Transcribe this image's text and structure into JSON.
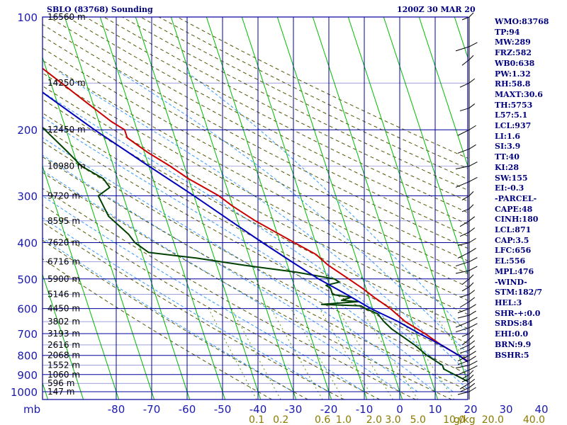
{
  "header": {
    "title": "SBLO (83768) Sounding",
    "datetime": "1200Z 30 MAR 20"
  },
  "indices": [
    "WMO:83768",
    "TP:94",
    "MW:289",
    "FRZ:582",
    "WB0:638",
    "PW:1.32",
    "RH:58.8",
    "MAXT:30.6",
    "TH:5753",
    "L57:5.1",
    "LCL:937",
    "LI:1.6",
    "SI:3.9",
    "TT:40",
    "KI:28",
    "SW:155",
    "EI:-0.3",
    "-PARCEL-",
    "CAPE:48",
    "CINH:180",
    "LCL:871",
    "CAP:3.5",
    "LFC:656",
    "EL:556",
    "MPL:476",
    "-WIND-",
    "STM:182/7",
    "HEL:3",
    "SHR-+:0.0",
    "SRDS:84",
    "EHI:0.0",
    "BRN:9.9",
    "BSHR:5"
  ],
  "colors": {
    "temperature": "#cc0000",
    "dewpoint": "#004000",
    "parcel": "#0000bb",
    "isobar": "#000099",
    "isotherm": "#00bb00",
    "dry_adiabat": "#555500",
    "moist_adiabat": "#3399ff",
    "label": "#1a1ab3"
  },
  "chart_data": {
    "type": "skew-t log-p sounding",
    "units_label": "mb",
    "mixing_ratio_unit": "g/kg",
    "pressure_levels": [
      100,
      200,
      300,
      400,
      500,
      600,
      700,
      800,
      900,
      1000
    ],
    "pressure_tick_labels": [
      "100",
      "200",
      "300",
      "400",
      "500",
      "600",
      "700",
      "800",
      "900",
      "1000"
    ],
    "pressure_range": [
      100,
      1050
    ],
    "temperature_ticks": [
      -80,
      -70,
      -60,
      -50,
      -40,
      -30,
      -20,
      -10,
      0,
      10,
      20,
      30,
      40
    ],
    "temperature_tick_labels": [
      "-80",
      "-70",
      "-60",
      "-50",
      "-40",
      "-30",
      "-20",
      "-10",
      "0",
      "10",
      "20",
      "30",
      "40"
    ],
    "heights": [
      {
        "p": 100,
        "label": "16560 m"
      },
      {
        "p": 150,
        "label": "14250 m"
      },
      {
        "p": 200,
        "label": "12450 m"
      },
      {
        "p": 250,
        "label": "10980 m"
      },
      {
        "p": 300,
        "label": "9720 m"
      },
      {
        "p": 350,
        "label": "8595 m"
      },
      {
        "p": 400,
        "label": "7620 m"
      },
      {
        "p": 450,
        "label": "6716 m"
      },
      {
        "p": 500,
        "label": "5900 m"
      },
      {
        "p": 550,
        "label": "5146 m"
      },
      {
        "p": 600,
        "label": "4450 m"
      },
      {
        "p": 650,
        "label": "3802 m"
      },
      {
        "p": 700,
        "label": "3193 m"
      },
      {
        "p": 750,
        "label": "2616 m"
      },
      {
        "p": 800,
        "label": "2068 m"
      },
      {
        "p": 850,
        "label": "1552 m"
      },
      {
        "p": 900,
        "label": "1060 m"
      },
      {
        "p": 950,
        "label": "596 m"
      },
      {
        "p": 1000,
        "label": "147 m"
      }
    ],
    "mixing_ratio_labels": [
      "0.1",
      "0.2",
      "0.6",
      "1.0",
      "2.0",
      "3.0",
      "5.0",
      "10.0",
      "20.0",
      "40.0"
    ],
    "mixing_ratio_values": [
      0.1,
      0.2,
      0.6,
      1.0,
      2.0,
      3.0,
      5.0,
      10.0,
      20.0,
      40.0
    ],
    "series": [
      {
        "key": "temperature",
        "points": [
          [
            100,
            -80.0
          ],
          [
            120,
            -77.0
          ],
          [
            150,
            -67.0
          ],
          [
            170,
            -61.5
          ],
          [
            190,
            -56.5
          ],
          [
            200,
            -53.5
          ],
          [
            210,
            -53.5
          ],
          [
            230,
            -49.0
          ],
          [
            250,
            -44.0
          ],
          [
            270,
            -40.0
          ],
          [
            300,
            -33.0
          ],
          [
            320,
            -30.0
          ],
          [
            350,
            -25.0
          ],
          [
            400,
            -16.0
          ],
          [
            430,
            -11.0
          ],
          [
            460,
            -8.5
          ],
          [
            500,
            -4.0
          ],
          [
            530,
            -1.0
          ],
          [
            560,
            1.5
          ],
          [
            600,
            5.0
          ],
          [
            650,
            8.0
          ],
          [
            700,
            12.5
          ],
          [
            750,
            16.0
          ],
          [
            800,
            20.0
          ],
          [
            850,
            23.5
          ],
          [
            870,
            24.0
          ],
          [
            900,
            22.5
          ],
          [
            930,
            22.0
          ],
          [
            950,
            21.0
          ],
          [
            960,
            20.5
          ]
        ]
      },
      {
        "key": "dewpoint",
        "points": [
          [
            100,
            -90.0
          ],
          [
            150,
            -84.0
          ],
          [
            175,
            -80.0
          ],
          [
            200,
            -76.0
          ],
          [
            230,
            -71.5
          ],
          [
            250,
            -69.0
          ],
          [
            270,
            -64.0
          ],
          [
            285,
            -63.0
          ],
          [
            300,
            -67.0
          ],
          [
            340,
            -66.0
          ],
          [
            380,
            -62.0
          ],
          [
            400,
            -61.0
          ],
          [
            425,
            -58.0
          ],
          [
            440,
            -45.0
          ],
          [
            460,
            -32.0
          ],
          [
            480,
            -18.0
          ],
          [
            500,
            -8.0
          ],
          [
            510,
            -7.0
          ],
          [
            520,
            -11.0
          ],
          [
            530,
            -10.0
          ],
          [
            550,
            -10.0
          ],
          [
            560,
            -5.0
          ],
          [
            570,
            -8.0
          ],
          [
            575,
            -3.5
          ],
          [
            585,
            -14.0
          ],
          [
            590,
            -3.0
          ],
          [
            600,
            -2.0
          ],
          [
            620,
            1.0
          ],
          [
            650,
            2.0
          ],
          [
            680,
            3.5
          ],
          [
            700,
            5.0
          ],
          [
            750,
            8.5
          ],
          [
            800,
            11.0
          ],
          [
            850,
            14.5
          ],
          [
            870,
            14.5
          ],
          [
            900,
            17.0
          ],
          [
            950,
            21.0
          ],
          [
            960,
            21.5
          ]
        ]
      },
      {
        "key": "parcel",
        "points": [
          [
            100,
            -96.0
          ],
          [
            150,
            -76.0
          ],
          [
            200,
            -62.0
          ],
          [
            250,
            -50.0
          ],
          [
            300,
            -40.0
          ],
          [
            350,
            -32.0
          ],
          [
            400,
            -25.0
          ],
          [
            450,
            -18.5
          ],
          [
            500,
            -12.5
          ],
          [
            550,
            -6.0
          ],
          [
            600,
            -0.5
          ],
          [
            650,
            6.0
          ],
          [
            700,
            11.0
          ],
          [
            750,
            16.0
          ],
          [
            800,
            20.0
          ],
          [
            850,
            23.0
          ],
          [
            880,
            22.0
          ],
          [
            920,
            23.5
          ],
          [
            960,
            26.0
          ]
        ]
      }
    ]
  }
}
